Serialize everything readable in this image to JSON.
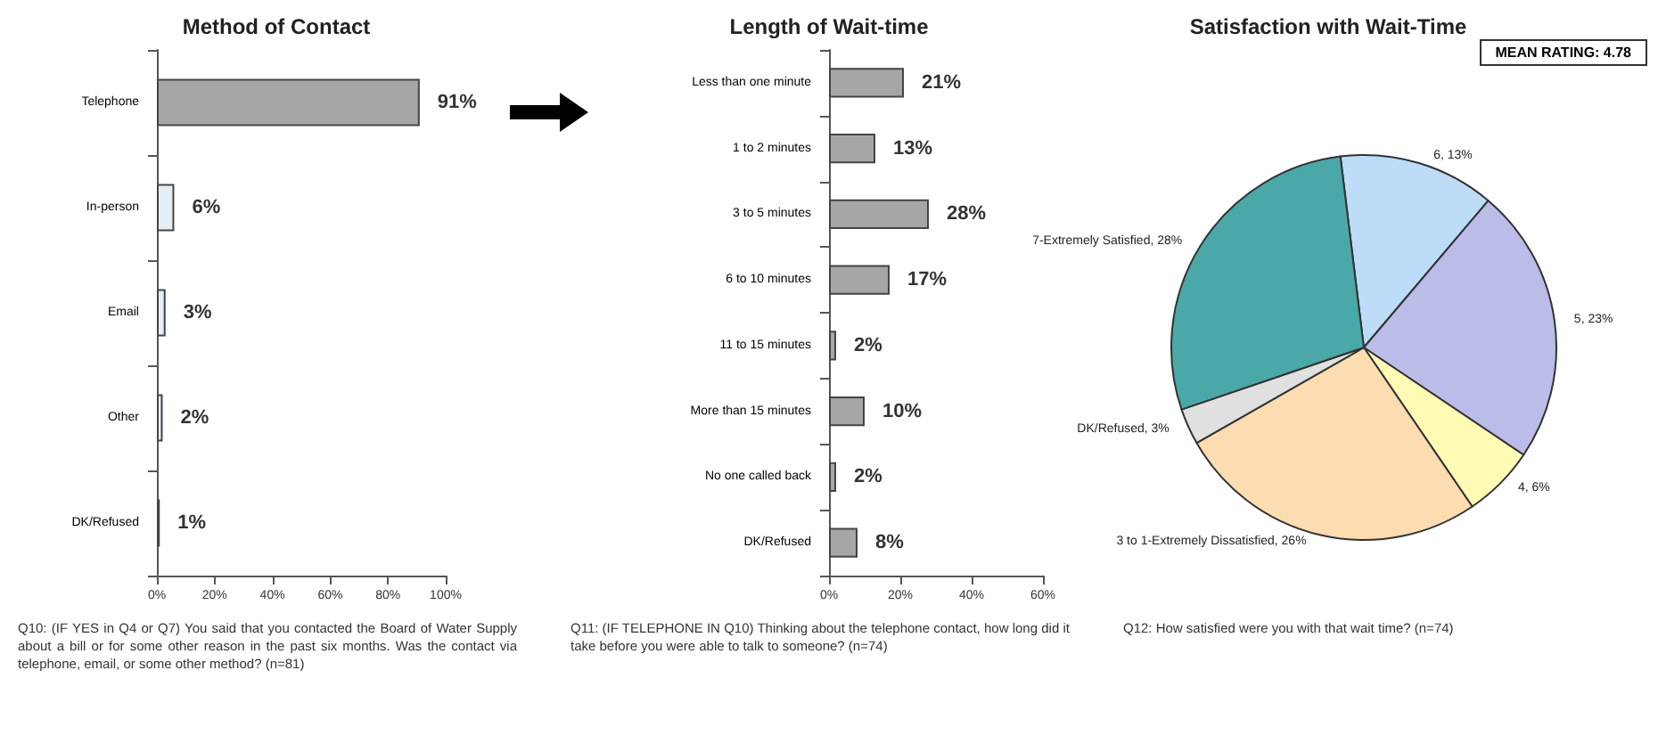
{
  "chart_data": [
    {
      "type": "bar",
      "title": "Method of Contact",
      "orientation": "horizontal",
      "categories": [
        "Telephone",
        "In-person",
        "Email",
        "Other",
        "DK/Refused"
      ],
      "values": [
        91,
        6,
        3,
        2,
        1
      ],
      "colors": [
        "#a6a6a6",
        "#e4eef6",
        "#e4eef6",
        "#e4eef6",
        "#e4eef6"
      ],
      "value_labels": [
        "91%",
        "6%",
        "3%",
        "2%",
        "1%"
      ],
      "xlim": [
        0,
        100
      ],
      "xticks": [
        {
          "value": 0,
          "label": "0%"
        },
        {
          "value": 20,
          "label": "20%"
        },
        {
          "value": 40,
          "label": "40%"
        },
        {
          "value": 60,
          "label": "60%"
        },
        {
          "value": 80,
          "label": "80%"
        },
        {
          "value": 100,
          "label": "100%"
        }
      ],
      "grid": false,
      "legend": false,
      "annotations": [
        "Q10: (IF YES in Q4 or Q7) You said that you contacted the Board of Water Supply about a bill or for some other reason in the past six months. Was the contact via telephone, email, or some other method? (n=81)"
      ]
    },
    {
      "type": "bar",
      "title": "Length of Wait-time",
      "orientation": "horizontal",
      "categories": [
        "Less than one minute",
        "1 to 2 minutes",
        "3 to 5 minutes",
        "6 to 10 minutes",
        "11 to 15 minutes",
        "More than 15 minutes",
        "No one called back",
        "DK/Refused"
      ],
      "values": [
        21,
        13,
        28,
        17,
        2,
        10,
        2,
        8
      ],
      "color": "#a6a6a6",
      "value_labels": [
        "21%",
        "13%",
        "28%",
        "17%",
        "2%",
        "10%",
        "2%",
        "8%"
      ],
      "xlim": [
        0,
        60
      ],
      "xticks": [
        {
          "value": 0,
          "label": "0%"
        },
        {
          "value": 20,
          "label": "20%"
        },
        {
          "value": 40,
          "label": "40%"
        },
        {
          "value": 60,
          "label": "60%"
        }
      ],
      "grid": false,
      "legend": false,
      "annotations": [
        "Q11: (IF TELEPHONE IN Q10) Thinking about the telephone contact, how long did it take before you were able to talk to someone? (n=74)"
      ]
    },
    {
      "type": "pie",
      "title": "Satisfaction with Wait-Time",
      "categories": [
        "6",
        "5",
        "4",
        "3 to 1-Extremely Dissatisfied",
        "DK/Refused",
        "7-Extremely Satisfied"
      ],
      "values": [
        13,
        23,
        6,
        26,
        3,
        28
      ],
      "colors": [
        "#bcdcf8",
        "#bcbce8",
        "#fffab4",
        "#fcdcb0",
        "#e0e0e0",
        "#4aa8a8"
      ],
      "value_labels": [
        ", 13%",
        ", 23%",
        ", 6%",
        ", 26%",
        ", 3%",
        ", 28%"
      ],
      "legend": false,
      "annotations": [
        "MEAN RATING: 4.78",
        "Q12: How satisfied were you with that wait time? (n=74)"
      ]
    }
  ]
}
